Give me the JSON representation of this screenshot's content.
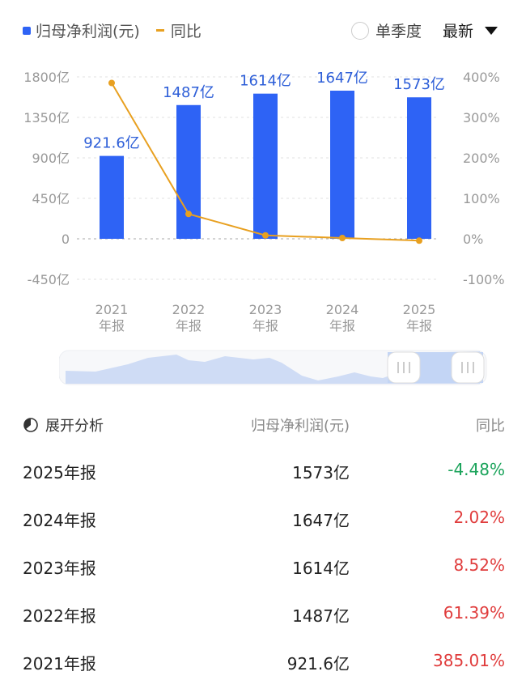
{
  "legend": {
    "bar_label": "归母净利润(元)",
    "line_label": "同比"
  },
  "controls": {
    "quarter_label": "单季度",
    "sort_label": "最新"
  },
  "chart_data": {
    "type": "bar+line",
    "categories": [
      "2021\n年报",
      "2022\n年报",
      "2023\n年报",
      "2024\n年报",
      "2025\n年报"
    ],
    "series": [
      {
        "name": "归母净利润(元)",
        "unit": "亿",
        "values": [
          921.6,
          1487,
          1614,
          1647,
          1573
        ],
        "labels": [
          "921.6亿",
          "1487亿",
          "1614亿",
          "1647亿",
          "1573亿"
        ],
        "color": "#2e63f5"
      },
      {
        "name": "同比",
        "unit": "%",
        "values": [
          385.01,
          61.39,
          8.52,
          2.02,
          -4.48
        ],
        "color": "#e8a020"
      }
    ],
    "y_left": {
      "ticks": [
        1800,
        1350,
        900,
        450,
        0,
        -450
      ],
      "tick_labels": [
        "1800亿",
        "1350亿",
        "900亿",
        "450亿",
        "0",
        "-450亿"
      ],
      "range": [
        -450,
        1800
      ]
    },
    "y_right": {
      "ticks": [
        400,
        300,
        200,
        100,
        0,
        -100
      ],
      "tick_labels": [
        "400%",
        "300%",
        "200%",
        "100%",
        "0%",
        "-100%"
      ],
      "range": [
        -100,
        400
      ]
    },
    "grid": true
  },
  "table": {
    "expand_label": "展开分析",
    "col_value": "归母净利润(元)",
    "col_yoy": "同比",
    "rows": [
      {
        "period": "2025年报",
        "value": "1573亿",
        "yoy": "-4.48%",
        "color": "#1aa35a"
      },
      {
        "period": "2024年报",
        "value": "1647亿",
        "yoy": "2.02%",
        "color": "#e03c3c"
      },
      {
        "period": "2023年报",
        "value": "1614亿",
        "yoy": "8.52%",
        "color": "#e03c3c"
      },
      {
        "period": "2022年报",
        "value": "1487亿",
        "yoy": "61.39%",
        "color": "#e03c3c"
      },
      {
        "period": "2021年报",
        "value": "921.6亿",
        "yoy": "385.01%",
        "color": "#e03c3c"
      }
    ]
  }
}
